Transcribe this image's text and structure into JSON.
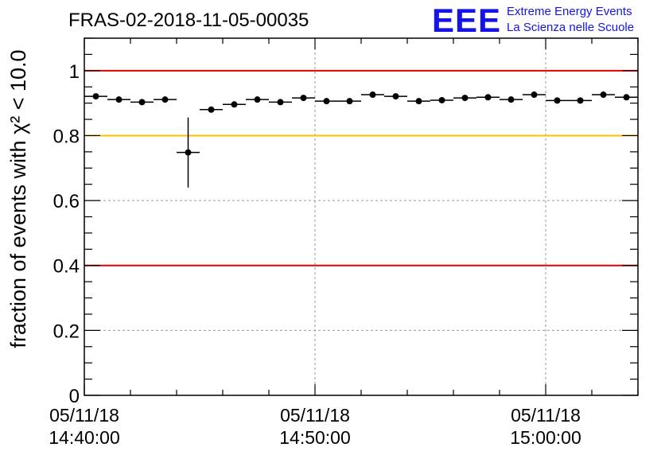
{
  "title": "FRAS-02-2018-11-05-00035",
  "logo": {
    "mark": "EEE",
    "line1": "Extreme Energy Events",
    "line2": "La Scienza nelle Scuole",
    "color": "#1414e6"
  },
  "chart_data": {
    "type": "scatter",
    "title": "FRAS-02-2018-11-05-00035",
    "xlabel": "",
    "ylabel": "fraction of events with χ² < 10.0",
    "ylim": [
      0,
      1.1
    ],
    "x_range_minutes": [
      0,
      24
    ],
    "x_tick_labels": [
      {
        "minute": 0,
        "date": "05/11/18",
        "time": "14:40:00"
      },
      {
        "minute": 10,
        "date": "05/11/18",
        "time": "14:50:00"
      },
      {
        "minute": 20,
        "date": "05/11/18",
        "time": "15:00:00"
      }
    ],
    "y_ticks": [
      0,
      0.2,
      0.4,
      0.6,
      0.8,
      1
    ],
    "y_tick_labels": [
      "0",
      "0.2",
      "0.4",
      "0.6",
      "0.8",
      "1"
    ],
    "grid": true,
    "reference_lines": [
      {
        "y": 1.0,
        "color": "#e60000"
      },
      {
        "y": 0.8,
        "color": "#ffc000"
      },
      {
        "y": 0.4,
        "color": "#e60000"
      }
    ],
    "points": [
      {
        "x": 0.5,
        "y": 0.921,
        "err": 0.006
      },
      {
        "x": 1.5,
        "y": 0.911,
        "err": 0.006
      },
      {
        "x": 2.5,
        "y": 0.903,
        "err": 0.006
      },
      {
        "x": 3.5,
        "y": 0.911,
        "err": 0.006
      },
      {
        "x": 4.5,
        "y": 0.748,
        "err": 0.108
      },
      {
        "x": 5.5,
        "y": 0.88,
        "err": 0.006
      },
      {
        "x": 6.5,
        "y": 0.896,
        "err": 0.006
      },
      {
        "x": 7.5,
        "y": 0.911,
        "err": 0.006
      },
      {
        "x": 8.5,
        "y": 0.903,
        "err": 0.006
      },
      {
        "x": 9.5,
        "y": 0.916,
        "err": 0.006
      },
      {
        "x": 10.5,
        "y": 0.906,
        "err": 0.006
      },
      {
        "x": 11.5,
        "y": 0.906,
        "err": 0.006
      },
      {
        "x": 12.5,
        "y": 0.926,
        "err": 0.006
      },
      {
        "x": 13.5,
        "y": 0.921,
        "err": 0.006
      },
      {
        "x": 14.5,
        "y": 0.906,
        "err": 0.006
      },
      {
        "x": 15.5,
        "y": 0.909,
        "err": 0.006
      },
      {
        "x": 16.5,
        "y": 0.916,
        "err": 0.006
      },
      {
        "x": 17.5,
        "y": 0.918,
        "err": 0.006
      },
      {
        "x": 18.5,
        "y": 0.911,
        "err": 0.006
      },
      {
        "x": 19.5,
        "y": 0.926,
        "err": 0.006
      },
      {
        "x": 20.5,
        "y": 0.908,
        "err": 0.006
      },
      {
        "x": 21.5,
        "y": 0.908,
        "err": 0.006
      },
      {
        "x": 22.5,
        "y": 0.926,
        "err": 0.006
      },
      {
        "x": 23.5,
        "y": 0.918,
        "err": 0.006
      }
    ]
  }
}
